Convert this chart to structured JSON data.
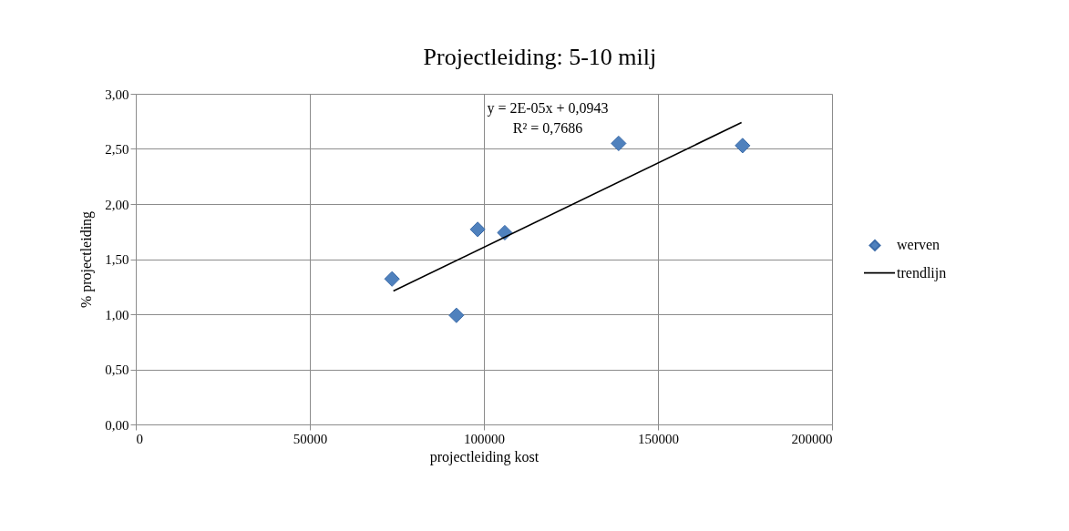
{
  "chart_data": {
    "type": "scatter",
    "title": "Projectleiding: 5-10 milj",
    "xlabel": "projectleiding kost",
    "ylabel": "% projectleiding",
    "series": [
      {
        "name": "werven",
        "color": "#4f81bd",
        "marker": "diamond",
        "x": [
          73600,
          92100,
          98200,
          106000,
          138700,
          174300
        ],
        "values": [
          1.32,
          0.99,
          1.77,
          1.74,
          2.55,
          2.53
        ]
      },
      {
        "name": "trendlijn",
        "type": "line",
        "color": "#000000",
        "line_style": "solid",
        "x": [
          74000,
          174000
        ],
        "values": [
          1.21,
          2.74
        ]
      }
    ],
    "xlim": [
      0,
      200000
    ],
    "xticks": [
      0,
      50000,
      100000,
      150000,
      200000
    ],
    "ylim": [
      0,
      3
    ],
    "yticks": [
      {
        "value": 0,
        "label": "0,00"
      },
      {
        "value": 0.5,
        "label": "0,50"
      },
      {
        "value": 1,
        "label": "1,00"
      },
      {
        "value": 1.5,
        "label": "1,50"
      },
      {
        "value": 2,
        "label": "2,00"
      },
      {
        "value": 2.5,
        "label": "2,50"
      },
      {
        "value": 3,
        "label": "3,00"
      }
    ],
    "annotations": [
      "y = 2E-05x + 0,0943",
      "R² = 0,7686"
    ],
    "grid": true,
    "legend": "right"
  }
}
